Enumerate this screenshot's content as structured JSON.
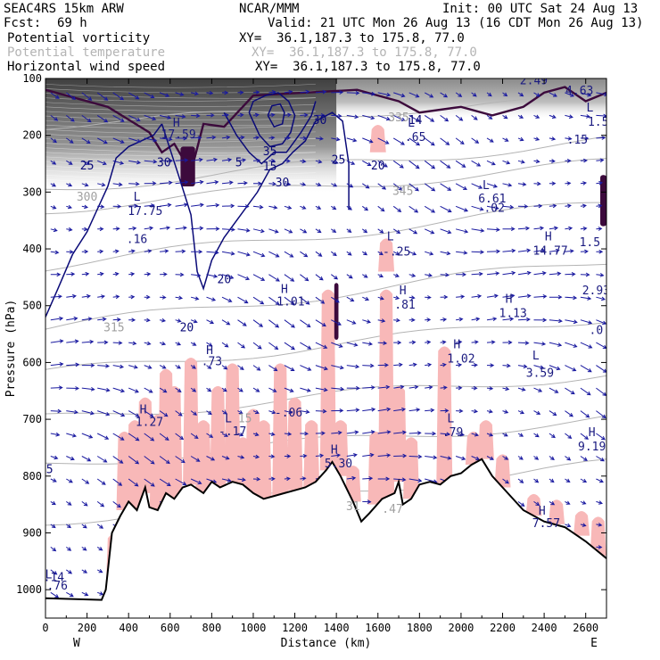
{
  "header": {
    "model": "SEAC4RS 15km ARW",
    "org": "NCAR/MMM",
    "init": "Init: 00 UTC Sat 24 Aug 13",
    "fcst_label": "Fcst:",
    "fcst_value": "69 h",
    "valid": "Valid: 21 UTC Mon 26 Aug 13 (16 CDT Mon 26 Aug 13)",
    "fields": [
      {
        "name": "Potential vorticity",
        "xy": "XY=  36.1,187.3 to 175.8, 77.0",
        "color": "#000000"
      },
      {
        "name": "Potential temperature",
        "xy": "XY=  36.1,187.3 to 175.8, 77.0",
        "color": "#b4b4b4"
      },
      {
        "name": "Horizontal wind speed",
        "xy": "XY=  36.1,187.3 to 175.8, 77.0",
        "color": "#000000"
      }
    ]
  },
  "chart_data": {
    "type": "cross-section",
    "xlabel": "Distance (km)",
    "ylabel": "Pressure (hPa)",
    "xlim": [
      0,
      2700
    ],
    "ylim": [
      1050,
      100
    ],
    "x_ticks": [
      0,
      200,
      400,
      600,
      800,
      1000,
      1200,
      1400,
      1600,
      1800,
      2000,
      2200,
      2400,
      2600
    ],
    "y_ticks": [
      100,
      200,
      300,
      400,
      500,
      600,
      700,
      800,
      900,
      1000
    ],
    "left_end_label": "W",
    "right_end_label": "E",
    "colors": {
      "theta": "#b4b4b4",
      "wind": "#0a0a78",
      "pv_shade": "#f8b8b8",
      "pv_high": "#3c0a3c",
      "terrain": "#000000",
      "vectors": "#1a1aa0"
    },
    "terrain": [
      [
        0,
        1015
      ],
      [
        270,
        1018
      ],
      [
        290,
        1000
      ],
      [
        320,
        900
      ],
      [
        360,
        870
      ],
      [
        400,
        845
      ],
      [
        440,
        860
      ],
      [
        480,
        820
      ],
      [
        500,
        855
      ],
      [
        540,
        860
      ],
      [
        580,
        830
      ],
      [
        620,
        840
      ],
      [
        660,
        820
      ],
      [
        700,
        815
      ],
      [
        760,
        830
      ],
      [
        800,
        810
      ],
      [
        840,
        820
      ],
      [
        900,
        810
      ],
      [
        950,
        815
      ],
      [
        1000,
        830
      ],
      [
        1050,
        840
      ],
      [
        1100,
        835
      ],
      [
        1150,
        830
      ],
      [
        1200,
        825
      ],
      [
        1250,
        820
      ],
      [
        1300,
        810
      ],
      [
        1350,
        790
      ],
      [
        1380,
        775
      ],
      [
        1420,
        800
      ],
      [
        1480,
        845
      ],
      [
        1520,
        880
      ],
      [
        1560,
        865
      ],
      [
        1620,
        840
      ],
      [
        1680,
        830
      ],
      [
        1700,
        810
      ],
      [
        1720,
        850
      ],
      [
        1760,
        840
      ],
      [
        1800,
        815
      ],
      [
        1850,
        810
      ],
      [
        1900,
        815
      ],
      [
        1950,
        800
      ],
      [
        2000,
        795
      ],
      [
        2050,
        780
      ],
      [
        2100,
        770
      ],
      [
        2150,
        800
      ],
      [
        2200,
        820
      ],
      [
        2300,
        860
      ],
      [
        2400,
        880
      ],
      [
        2500,
        890
      ],
      [
        2600,
        915
      ],
      [
        2700,
        945
      ]
    ],
    "wind_contours": [
      {
        "label": "20",
        "points": [
          [
            0,
            520
          ],
          [
            60,
            470
          ],
          [
            130,
            410
          ],
          [
            200,
            370
          ],
          [
            250,
            330
          ],
          [
            300,
            290
          ],
          [
            340,
            240
          ],
          [
            400,
            220
          ],
          [
            460,
            210
          ],
          [
            520,
            200
          ],
          [
            560,
            180
          ]
        ]
      },
      {
        "label": "20",
        "points": [
          [
            560,
            180
          ],
          [
            640,
            270
          ],
          [
            700,
            340
          ],
          [
            730,
            440
          ],
          [
            760,
            470
          ],
          [
            800,
            420
          ],
          [
            860,
            380
          ],
          [
            940,
            340
          ],
          [
            1020,
            300
          ],
          [
            1080,
            260
          ],
          [
            1140,
            250
          ],
          [
            1190,
            230
          ],
          [
            1250,
            210
          ],
          [
            1300,
            175
          ],
          [
            1380,
            160
          ],
          [
            1430,
            175
          ],
          [
            1460,
            250
          ],
          [
            1460,
            330
          ]
        ]
      },
      {
        "label": "25",
        "points": [
          [
            860,
            160
          ],
          [
            920,
            200
          ],
          [
            980,
            230
          ],
          [
            1040,
            250
          ],
          [
            1100,
            230
          ],
          [
            1160,
            230
          ],
          [
            1230,
            195
          ],
          [
            1280,
            165
          ],
          [
            1300,
            140
          ]
        ]
      },
      {
        "label": "30",
        "points": [
          [
            980,
            160
          ],
          [
            1030,
            200
          ],
          [
            1080,
            220
          ],
          [
            1140,
            215
          ],
          [
            1180,
            195
          ],
          [
            1200,
            165
          ],
          [
            1170,
            140
          ],
          [
            1120,
            125
          ],
          [
            1060,
            130
          ],
          [
            1000,
            140
          ],
          [
            980,
            160
          ]
        ]
      },
      {
        "label": "35",
        "points": [
          [
            1070,
            165
          ],
          [
            1100,
            185
          ],
          [
            1140,
            180
          ],
          [
            1150,
            160
          ],
          [
            1130,
            145
          ],
          [
            1090,
            148
          ],
          [
            1070,
            165
          ]
        ]
      }
    ],
    "theta_contours": [
      {
        "label": "300",
        "y_left": 295,
        "y_right": 210
      },
      {
        "label": "305",
        "y_left": 330,
        "y_right": 250
      },
      {
        "label": "310",
        "y_left": 430,
        "y_right": 320
      },
      {
        "label": "315",
        "y_left": 540,
        "y_right": 420
      },
      {
        "label": "320",
        "y_left": 620,
        "y_right": 520
      },
      {
        "label": "325",
        "y_left": 700,
        "y_right": 620
      },
      {
        "label": "330",
        "y_left": 780,
        "y_right": 700
      },
      {
        "label": "335",
        "y_left": 880,
        "y_right": 780
      },
      {
        "label": "345",
        "y_left": 180,
        "y_right": 140
      }
    ],
    "pv_high_regions": [
      {
        "x": [
          650,
          720
        ],
        "p": [
          220,
          290
        ]
      },
      {
        "x": [
          1390,
          1410
        ],
        "p": [
          460,
          560
        ]
      },
      {
        "x": [
          2670,
          2700
        ],
        "p": [
          270,
          360
        ]
      }
    ],
    "pv_shaded_cols": [
      {
        "x": 330,
        "p": [
          900,
          990
        ]
      },
      {
        "x": 380,
        "p": [
          720,
          860
        ]
      },
      {
        "x": 430,
        "p": [
          700,
          860
        ]
      },
      {
        "x": 480,
        "p": [
          660,
          830
        ]
      },
      {
        "x": 540,
        "p": [
          690,
          860
        ]
      },
      {
        "x": 580,
        "p": [
          610,
          830
        ]
      },
      {
        "x": 620,
        "p": [
          640,
          840
        ]
      },
      {
        "x": 700,
        "p": [
          590,
          815
        ]
      },
      {
        "x": 760,
        "p": [
          700,
          830
        ]
      },
      {
        "x": 830,
        "p": [
          640,
          820
        ]
      },
      {
        "x": 900,
        "p": [
          600,
          810
        ]
      },
      {
        "x": 950,
        "p": [
          730,
          815
        ]
      },
      {
        "x": 1000,
        "p": [
          680,
          830
        ]
      },
      {
        "x": 1050,
        "p": [
          700,
          840
        ]
      },
      {
        "x": 1130,
        "p": [
          600,
          835
        ]
      },
      {
        "x": 1200,
        "p": [
          660,
          825
        ]
      },
      {
        "x": 1280,
        "p": [
          700,
          820
        ]
      },
      {
        "x": 1360,
        "p": [
          470,
          790
        ]
      },
      {
        "x": 1420,
        "p": [
          700,
          800
        ]
      },
      {
        "x": 1480,
        "p": [
          780,
          845
        ]
      },
      {
        "x": 1590,
        "p": [
          720,
          850
        ]
      },
      {
        "x": 1640,
        "p": [
          470,
          840
        ]
      },
      {
        "x": 1700,
        "p": [
          640,
          810
        ]
      },
      {
        "x": 1760,
        "p": [
          730,
          840
        ]
      },
      {
        "x": 1920,
        "p": [
          570,
          815
        ]
      },
      {
        "x": 2060,
        "p": [
          720,
          780
        ]
      },
      {
        "x": 2120,
        "p": [
          700,
          770
        ]
      },
      {
        "x": 2200,
        "p": [
          760,
          820
        ]
      },
      {
        "x": 2350,
        "p": [
          830,
          870
        ]
      },
      {
        "x": 2460,
        "p": [
          840,
          885
        ]
      },
      {
        "x": 2580,
        "p": [
          860,
          905
        ]
      },
      {
        "x": 2660,
        "p": [
          870,
          940
        ]
      },
      {
        "x": 1600,
        "p": [
          180,
          230
        ]
      },
      {
        "x": 1640,
        "p": [
          380,
          440
        ]
      }
    ],
    "annotations": [
      {
        "x": 15,
        "p": 980,
        "text": "L"
      },
      {
        "x": 40,
        "p": 985,
        "text": ".14"
      },
      {
        "x": 40,
        "p": 1000,
        "text": "5.76"
      },
      {
        "x": 440,
        "p": 315,
        "text": "L"
      },
      {
        "x": 480,
        "p": 340,
        "text": "17.75"
      },
      {
        "x": 440,
        "p": 390,
        "text": ".16"
      },
      {
        "x": 630,
        "p": 185,
        "text": "H"
      },
      {
        "x": 640,
        "p": 205,
        "text": "17.59"
      },
      {
        "x": 470,
        "p": 690,
        "text": "H"
      },
      {
        "x": 500,
        "p": 712,
        "text": "1.27"
      },
      {
        "x": 790,
        "p": 585,
        "text": "H"
      },
      {
        "x": 800,
        "p": 605,
        "text": ".73"
      },
      {
        "x": 880,
        "p": 705,
        "text": "L"
      },
      {
        "x": 900,
        "p": 728,
        "text": "-.17"
      },
      {
        "x": 1150,
        "p": 478,
        "text": "H"
      },
      {
        "x": 1180,
        "p": 500,
        "text": "1.01"
      },
      {
        "x": 1170,
        "p": 695,
        "text": "-.06"
      },
      {
        "x": 1390,
        "p": 760,
        "text": "H"
      },
      {
        "x": 1410,
        "p": 785,
        "text": "5.30"
      },
      {
        "x": 1660,
        "p": 385,
        "text": "L"
      },
      {
        "x": 1690,
        "p": 412,
        "text": "-.25"
      },
      {
        "x": 1720,
        "p": 480,
        "text": "H"
      },
      {
        "x": 1730,
        "p": 505,
        "text": ".81"
      },
      {
        "x": 1760,
        "p": 185,
        "text": "L"
      },
      {
        "x": 1780,
        "p": 210,
        "text": ".65"
      },
      {
        "x": 1980,
        "p": 575,
        "text": "H"
      },
      {
        "x": 2000,
        "p": 600,
        "text": "1.02"
      },
      {
        "x": 1950,
        "p": 705,
        "text": "L"
      },
      {
        "x": 1960,
        "p": 730,
        "text": ".79"
      },
      {
        "x": 2120,
        "p": 295,
        "text": "L"
      },
      {
        "x": 2150,
        "p": 318,
        "text": "6.61"
      },
      {
        "x": 2160,
        "p": 335,
        "text": ".02"
      },
      {
        "x": 2230,
        "p": 495,
        "text": "H"
      },
      {
        "x": 2250,
        "p": 520,
        "text": "1.13"
      },
      {
        "x": 2360,
        "p": 595,
        "text": "L"
      },
      {
        "x": 2380,
        "p": 625,
        "text": "3.59"
      },
      {
        "x": 2420,
        "p": 385,
        "text": "H"
      },
      {
        "x": 2430,
        "p": 410,
        "text": "14.77"
      },
      {
        "x": 2390,
        "p": 868,
        "text": "H"
      },
      {
        "x": 2410,
        "p": 890,
        "text": "7.57"
      },
      {
        "x": 2630,
        "p": 730,
        "text": "H"
      },
      {
        "x": 2630,
        "p": 755,
        "text": "9.19"
      },
      {
        "x": 2620,
        "p": 158,
        "text": "L"
      },
      {
        "x": 2660,
        "p": 183,
        "text": "1.5"
      },
      {
        "x": 2560,
        "p": 215,
        "text": ".15"
      },
      {
        "x": 2570,
        "p": 128,
        "text": "4.63"
      },
      {
        "x": 2350,
        "p": 110,
        "text": "2.49"
      },
      {
        "x": 2650,
        "p": 480,
        "text": "2.93"
      },
      {
        "x": 2650,
        "p": 550,
        "text": ".0"
      },
      {
        "x": 2620,
        "p": 395,
        "text": "1.5"
      },
      {
        "x": 1800,
        "p": 1000,
        "text": ""
      }
    ],
    "wind_labels": [
      {
        "x": 200,
        "p": 260,
        "text": "25"
      },
      {
        "x": 570,
        "p": 255,
        "text": "30"
      },
      {
        "x": 860,
        "p": 460,
        "text": "20"
      },
      {
        "x": 680,
        "p": 545,
        "text": "20"
      },
      {
        "x": 1080,
        "p": 235,
        "text": "35"
      },
      {
        "x": 1080,
        "p": 262,
        "text": "15"
      },
      {
        "x": 1140,
        "p": 290,
        "text": "30"
      },
      {
        "x": 1410,
        "p": 250,
        "text": "25"
      },
      {
        "x": 1320,
        "p": 180,
        "text": "30"
      },
      {
        "x": 1600,
        "p": 260,
        "text": "20"
      },
      {
        "x": 1780,
        "p": 180,
        "text": "14"
      },
      {
        "x": 930,
        "p": 255,
        "text": "5"
      },
      {
        "x": 20,
        "p": 795,
        "text": "5"
      }
    ],
    "theta_labels": [
      {
        "x": 200,
        "p": 315,
        "text": "300"
      },
      {
        "x": 330,
        "p": 545,
        "text": "315"
      },
      {
        "x": 1700,
        "p": 175,
        "text": "335"
      },
      {
        "x": 1720,
        "p": 305,
        "text": "345"
      },
      {
        "x": 1480,
        "p": 860,
        "text": "31"
      },
      {
        "x": 1670,
        "p": 865,
        "text": ".47"
      },
      {
        "x": 960,
        "p": 705,
        "text": "15"
      }
    ]
  }
}
